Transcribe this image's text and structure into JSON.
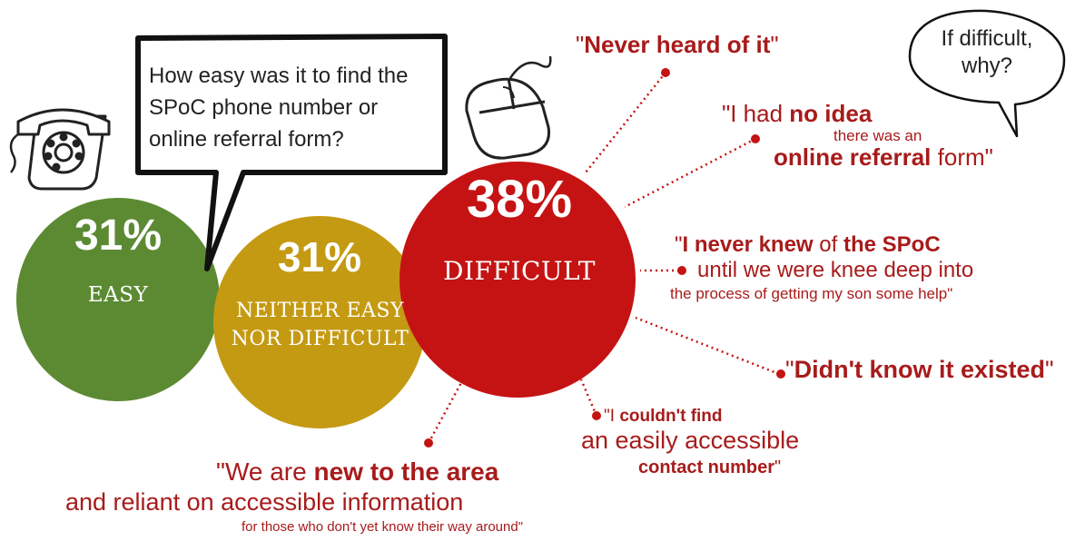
{
  "question": "How easy was it to find the SPoC phone number or online referral form?",
  "followup": [
    "If difficult,",
    "why?"
  ],
  "colors": {
    "easy": "#5c8a33",
    "neither": "#c49a12",
    "difficult": "#c51313",
    "quote": "#a81b1b"
  },
  "icons": {
    "phone": "rotary-phone-icon",
    "mouse": "computer-mouse-icon"
  },
  "chart_data": {
    "type": "bubble",
    "categories": [
      "EASY",
      "NEITHER EASY NOR DIFFICULT",
      "DIFFICULT"
    ],
    "values": [
      31,
      31,
      38
    ],
    "value_labels": [
      "31%",
      "31%",
      "38%"
    ]
  },
  "categories": {
    "easy": {
      "pct": "31%",
      "label": "EASY"
    },
    "neither": {
      "pct": "31%",
      "label1": "NEITHER EASY",
      "label2": "NOR DIFFICULT"
    },
    "difficult": {
      "pct": "38%",
      "label": "DIFFICULT"
    }
  },
  "quotes": {
    "q1": {
      "a": "\"",
      "b": "Never heard of it",
      "c": "\""
    },
    "q2": {
      "l1a": "\"I had ",
      "l1b": "no idea",
      "l2": "there was an",
      "l3a": "online referral",
      "l3b": " form\""
    },
    "q3": {
      "l1a": "\"",
      "l1b": "I never knew",
      "l1c": " of ",
      "l1d": "the SPoC",
      "l2": "until we were knee deep into",
      "l3": "the process of getting my son some help\""
    },
    "q4": {
      "a": "\"",
      "b": "Didn't know it existed",
      "c": "\""
    },
    "q5": {
      "l1a": "\"I ",
      "l1b": "couldn't find",
      "l2": "an easily accessible",
      "l3a": "contact number",
      "l3b": "\""
    },
    "q6": {
      "l1a": "\"We are ",
      "l1b": "new to the area",
      "l2": "and reliant on accessible information",
      "l3": "for those who don't yet know their way around\""
    }
  }
}
